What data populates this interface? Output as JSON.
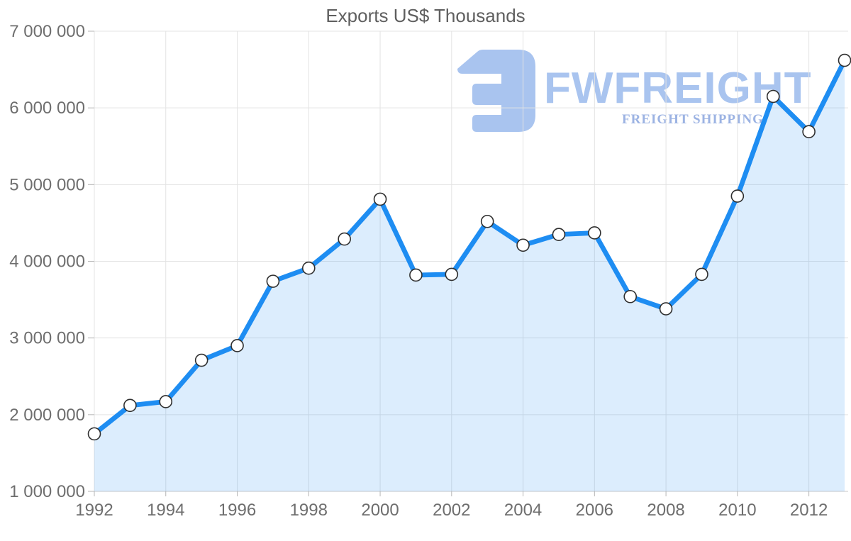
{
  "watermark": {
    "name": "FWFREIGHT",
    "tagline": "FREIGHT SHIPPING",
    "logo_color": "#a9c4ef",
    "tagline_color": "#9cb3e3"
  },
  "chart_data": {
    "type": "area",
    "title": "Exports US$ Thousands",
    "xlabel": "",
    "ylabel": "",
    "x": [
      1992,
      1993,
      1994,
      1995,
      1996,
      1997,
      1998,
      1999,
      2000,
      2001,
      2002,
      2003,
      2004,
      2005,
      2006,
      2007,
      2008,
      2009,
      2010,
      2011,
      2012,
      2013
    ],
    "values": [
      1750000,
      2120000,
      2170000,
      2710000,
      2900000,
      3740000,
      3910000,
      4290000,
      4810000,
      3820000,
      3830000,
      4520000,
      4210000,
      4350000,
      4370000,
      3540000,
      3380000,
      3830000,
      4850000,
      6150000,
      5690000,
      6620000
    ],
    "xlim": [
      1992,
      2013
    ],
    "ylim": [
      1000000,
      7000000
    ],
    "x_tick_values": [
      1992,
      1994,
      1996,
      1998,
      2000,
      2002,
      2004,
      2006,
      2008,
      2010,
      2012
    ],
    "x_tick_labels": [
      "1992",
      "1994",
      "1996",
      "1998",
      "2000",
      "2002",
      "2004",
      "2006",
      "2008",
      "2010",
      "2012"
    ],
    "y_tick_values": [
      1000000,
      2000000,
      3000000,
      4000000,
      5000000,
      6000000,
      7000000
    ],
    "y_tick_labels": [
      "1 000 000",
      "2 000 000",
      "3 000 000",
      "4 000 000",
      "5 000 000",
      "6 000 000",
      "7 000 000"
    ],
    "grid": true,
    "legend": "none",
    "colors": {
      "line": "#1e8df2",
      "area_fill": "rgba(30,141,242,0.155)",
      "marker_fill": "#ffffff",
      "marker_stroke": "#2f2f2f",
      "gridline": "#e3e3e3",
      "axis_line": "#c8c8c8",
      "tick_mark": "#b5b5b5",
      "tick_text": "#6e6e6e",
      "title_text": "#5f5f5f"
    }
  }
}
